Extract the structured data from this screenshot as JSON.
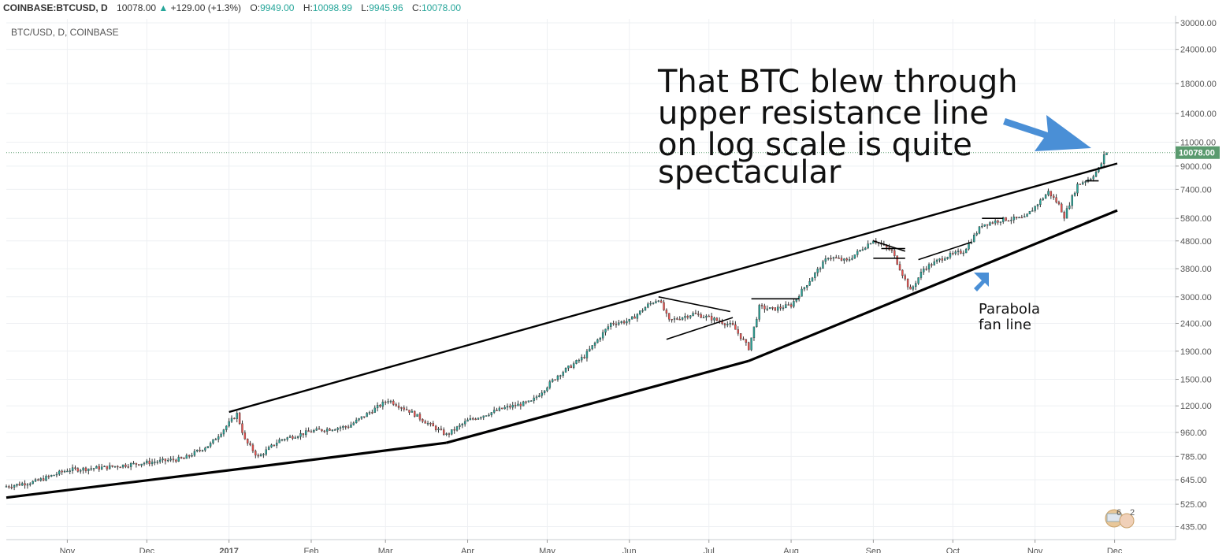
{
  "header": {
    "symbol": "COINBASE:BTCUSD, D",
    "last": "10078.00",
    "change": "+129.00 (+1.3%)",
    "open_label": "O:",
    "open": "9949.00",
    "high_label": "H:",
    "high": "10098.99",
    "low_label": "L:",
    "low": "9945.96",
    "close_label": "C:",
    "close": "10078.00"
  },
  "chart_data": {
    "type": "line",
    "subtitle": "BTC/USD, D, COINBASE",
    "yscale": "log",
    "ylim": [
      390,
      31000
    ],
    "y_ticks": [
      435,
      525,
      645,
      785,
      960,
      1200,
      1500,
      1900,
      2400,
      3000,
      3800,
      4800,
      5800,
      7400,
      9000,
      11000,
      14000,
      18000,
      24000,
      30000
    ],
    "y_tick_labels": [
      "435.00",
      "525.00",
      "645.00",
      "785.00",
      "960.00",
      "1200.00",
      "1500.00",
      "1900.00",
      "2400.00",
      "3000.00",
      "3800.00",
      "4800.00",
      "5800.00",
      "7400.00",
      "9000.00",
      "11000.00",
      "14000.00",
      "18000.00",
      "24000.00",
      "30000.00"
    ],
    "x_ticks": [
      {
        "date": "2016-11-01",
        "label": "Nov"
      },
      {
        "date": "2016-12-01",
        "label": "Dec"
      },
      {
        "date": "2017-01-01",
        "label": "2017"
      },
      {
        "date": "2017-02-01",
        "label": "Feb"
      },
      {
        "date": "2017-03-01",
        "label": "Mar"
      },
      {
        "date": "2017-04-01",
        "label": "Apr"
      },
      {
        "date": "2017-05-01",
        "label": "May"
      },
      {
        "date": "2017-06-01",
        "label": "Jun"
      },
      {
        "date": "2017-07-01",
        "label": "Jul"
      },
      {
        "date": "2017-08-01",
        "label": "Aug"
      },
      {
        "date": "2017-09-01",
        "label": "Sep"
      },
      {
        "date": "2017-10-01",
        "label": "Oct"
      },
      {
        "date": "2017-11-01",
        "label": "Nov"
      },
      {
        "date": "2017-12-01",
        "label": "Dec"
      }
    ],
    "xlim": [
      "2016-10-09",
      "2017-12-24"
    ],
    "last_price": 10078,
    "last_price_label": "10078.00",
    "price_path": [
      [
        "2016-10-09",
        610
      ],
      [
        "2016-10-20",
        635
      ],
      [
        "2016-11-01",
        700
      ],
      [
        "2016-11-15",
        715
      ],
      [
        "2016-12-01",
        745
      ],
      [
        "2016-12-15",
        770
      ],
      [
        "2016-12-25",
        870
      ],
      [
        "2017-01-04",
        1120
      ],
      [
        "2017-01-07",
        900
      ],
      [
        "2017-01-12",
        780
      ],
      [
        "2017-01-20",
        900
      ],
      [
        "2017-02-01",
        970
      ],
      [
        "2017-02-15",
        1010
      ],
      [
        "2017-03-02",
        1260
      ],
      [
        "2017-03-10",
        1150
      ],
      [
        "2017-03-18",
        1020
      ],
      [
        "2017-03-24",
        940
      ],
      [
        "2017-04-01",
        1060
      ],
      [
        "2017-04-15",
        1180
      ],
      [
        "2017-04-25",
        1240
      ],
      [
        "2017-05-05",
        1550
      ],
      [
        "2017-05-15",
        1820
      ],
      [
        "2017-05-25",
        2400
      ],
      [
        "2017-06-01",
        2450
      ],
      [
        "2017-06-08",
        2800
      ],
      [
        "2017-06-12",
        2950
      ],
      [
        "2017-06-16",
        2450
      ],
      [
        "2017-06-25",
        2600
      ],
      [
        "2017-07-01",
        2520
      ],
      [
        "2017-07-10",
        2350
      ],
      [
        "2017-07-16",
        1950
      ],
      [
        "2017-07-20",
        2750
      ],
      [
        "2017-07-25",
        2700
      ],
      [
        "2017-08-01",
        2800
      ],
      [
        "2017-08-07",
        3350
      ],
      [
        "2017-08-15",
        4200
      ],
      [
        "2017-08-22",
        4050
      ],
      [
        "2017-09-01",
        4850
      ],
      [
        "2017-09-08",
        4400
      ],
      [
        "2017-09-15",
        3150
      ],
      [
        "2017-09-20",
        3800
      ],
      [
        "2017-09-28",
        4200
      ],
      [
        "2017-10-05",
        4400
      ],
      [
        "2017-10-12",
        5500
      ],
      [
        "2017-10-20",
        5750
      ],
      [
        "2017-10-28",
        5800
      ],
      [
        "2017-11-06",
        7250
      ],
      [
        "2017-11-10",
        6500
      ],
      [
        "2017-11-12",
        5900
      ],
      [
        "2017-11-17",
        7700
      ],
      [
        "2017-11-22",
        8150
      ],
      [
        "2017-11-25",
        8800
      ],
      [
        "2017-11-26",
        9200
      ],
      [
        "2017-11-27",
        9800
      ],
      [
        "2017-11-28",
        10078
      ]
    ],
    "annotations": [
      {
        "text": "That BTC blew through"
      },
      {
        "text": "upper resistance line"
      },
      {
        "text": "on log scale is quite"
      },
      {
        "text": "spectacular"
      },
      {
        "text": "Parabola"
      },
      {
        "text": "fan line"
      }
    ],
    "trend_lines": [
      {
        "name": "upper-resistance",
        "points": [
          [
            "2017-01-01",
            1140
          ],
          [
            "2017-12-02",
            9200
          ]
        ]
      },
      {
        "name": "lower-fan-1",
        "points": [
          [
            "2016-10-09",
            555
          ],
          [
            "2017-01-12",
            720
          ],
          [
            "2017-03-24",
            880
          ]
        ]
      },
      {
        "name": "lower-fan-2",
        "points": [
          [
            "2017-03-24",
            880
          ],
          [
            "2017-07-16",
            1750
          ]
        ]
      },
      {
        "name": "lower-fan-3",
        "points": [
          [
            "2017-07-16",
            1750
          ],
          [
            "2017-12-02",
            6200
          ]
        ]
      },
      {
        "name": "triangle-upper",
        "points": [
          [
            "2017-06-12",
            3000
          ],
          [
            "2017-07-09",
            2650
          ]
        ]
      },
      {
        "name": "triangle-lower",
        "points": [
          [
            "2017-06-15",
            2100
          ],
          [
            "2017-07-10",
            2520
          ]
        ]
      },
      {
        "name": "flag-top",
        "points": [
          [
            "2017-07-17",
            2950
          ],
          [
            "2017-08-04",
            2950
          ]
        ]
      },
      {
        "name": "sep-flag-upper",
        "points": [
          [
            "2017-09-01",
            4800
          ],
          [
            "2017-09-13",
            4400
          ]
        ]
      },
      {
        "name": "sep-flag-mid",
        "points": [
          [
            "2017-09-04",
            4500
          ],
          [
            "2017-09-13",
            4500
          ]
        ]
      },
      {
        "name": "sep-flag-lower",
        "points": [
          [
            "2017-09-01",
            4150
          ],
          [
            "2017-09-13",
            4150
          ]
        ]
      },
      {
        "name": "oct-channel",
        "points": [
          [
            "2017-09-18",
            4100
          ],
          [
            "2017-10-08",
            4750
          ]
        ]
      },
      {
        "name": "oct-top",
        "points": [
          [
            "2017-10-12",
            5800
          ],
          [
            "2017-10-20",
            5800
          ]
        ]
      },
      {
        "name": "nov-top",
        "points": [
          [
            "2017-11-20",
            7950
          ],
          [
            "2017-11-25",
            7950
          ]
        ]
      }
    ],
    "arrows": [
      {
        "name": "big-arrow",
        "color": "#4a8fd6"
      },
      {
        "name": "small-arrow",
        "color": "#4a8fd6"
      }
    ],
    "colors": {
      "up": "#26a69a",
      "down": "#ef5350",
      "line": "#000000",
      "grid": "#eef0f3",
      "last_bg": "#5a9a6e",
      "arrow": "#4a8fd6"
    },
    "badge": {
      "count_a": "6",
      "count_b": "2"
    }
  }
}
